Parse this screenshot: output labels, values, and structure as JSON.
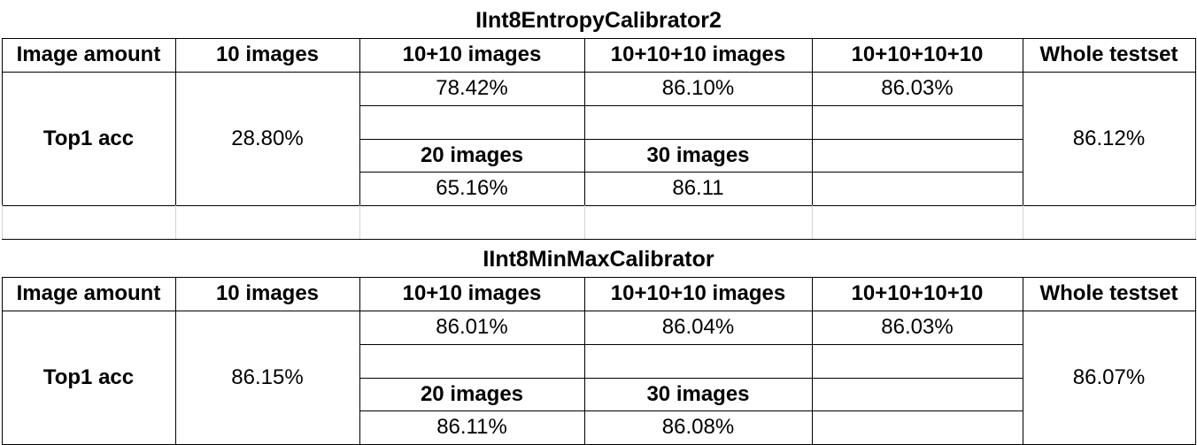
{
  "tables": [
    {
      "title": "IInt8EntropyCalibrator2",
      "headers": [
        "Image amount",
        "10 images",
        "10+10 images",
        "10+10+10 images",
        "10+10+10+10",
        "Whole testset"
      ],
      "row_label": "Top1 acc",
      "ten_images": "28.80%",
      "ten_ten_images": "78.42%",
      "ten_ten_ten_images": "86.10%",
      "ten_ten_ten_ten": "86.03%",
      "sub_header_20": "20 images",
      "sub_header_30": "30 images",
      "twenty_images": "65.16%",
      "thirty_images": "86.11",
      "whole_testset": "86.12%"
    },
    {
      "title": "IInt8MinMaxCalibrator",
      "headers": [
        "Image amount",
        "10 images",
        "10+10 images",
        "10+10+10 images",
        "10+10+10+10",
        "Whole testset"
      ],
      "row_label": "Top1 acc",
      "ten_images": "86.15%",
      "ten_ten_images": "86.01%",
      "ten_ten_ten_images": "86.04%",
      "ten_ten_ten_ten": "86.03%",
      "sub_header_20": "20 images",
      "sub_header_30": "30 images",
      "twenty_images": "86.11%",
      "thirty_images": "86.08%",
      "whole_testset": "86.07%"
    }
  ]
}
